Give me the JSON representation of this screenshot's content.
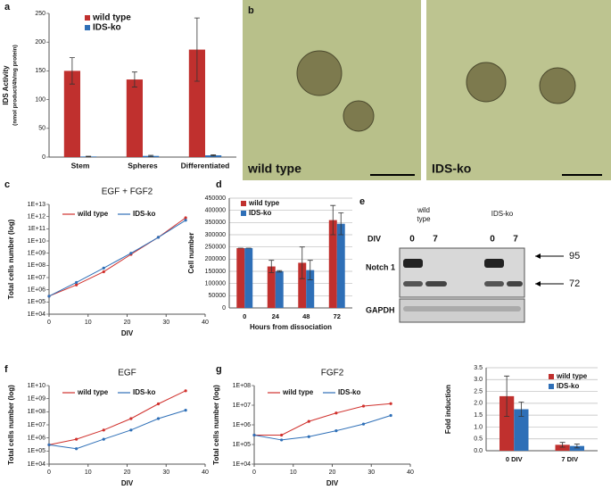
{
  "chart_data": [
    {
      "type": "bar",
      "panel": "a",
      "ylabel": "IDS Activity",
      "ylabel_sub": "(nmol product/4h/mg protein)",
      "categories": [
        "Stem",
        "Spheres",
        "Differentiated"
      ],
      "series": [
        {
          "name": "wild type",
          "color": "#c0302e",
          "values": [
            150,
            135,
            187
          ],
          "errors": [
            23,
            13,
            55
          ]
        },
        {
          "name": "IDS-ko",
          "color": "#2e6fb7",
          "values": [
            1,
            2,
            3
          ],
          "errors": [
            0.5,
            1,
            1
          ]
        }
      ],
      "ylim": [
        0,
        250
      ],
      "yticks": [
        0,
        50,
        100,
        150,
        200,
        250
      ],
      "grid": false,
      "legend": "upper left"
    },
    {
      "type": "line",
      "panel": "c",
      "title": "EGF + FGF2",
      "xlabel": "DIV",
      "ylabel": "Total cells number (log)",
      "log": true,
      "x": [
        0,
        7,
        14,
        21,
        28,
        35
      ],
      "series": [
        {
          "name": "wild type",
          "color": "#d0312d",
          "values": [
            300000,
            2500000,
            30000000,
            800000000,
            20000000000,
            800000000000
          ]
        },
        {
          "name": "IDS-ko",
          "color": "#2e6fb7",
          "values": [
            300000,
            4000000,
            60000000,
            1000000000,
            20000000000,
            500000000000
          ]
        }
      ],
      "xlim": [
        0,
        40
      ],
      "xticks": [
        0,
        10,
        20,
        30,
        40
      ],
      "ylim": [
        10000,
        10000000000000
      ],
      "yticks": [
        {
          "value": 10000,
          "label": "1E+04"
        },
        {
          "value": 100000,
          "label": "1E+05"
        },
        {
          "value": 1000000,
          "label": "1E+06"
        },
        {
          "value": 10000000,
          "label": "1E+07"
        },
        {
          "value": 100000000,
          "label": "1E+08"
        },
        {
          "value": 1000000000,
          "label": "1E+09"
        },
        {
          "value": 10000000000,
          "label": "1E+10"
        },
        {
          "value": 100000000000,
          "label": "1E+11"
        },
        {
          "value": 1000000000000,
          "label": "1E+12"
        },
        {
          "value": 10000000000000,
          "label": "1E+13"
        }
      ],
      "grid": false,
      "legend": "upper left"
    },
    {
      "type": "bar",
      "panel": "d",
      "xlabel": "Hours from dissociation",
      "ylabel": "Cell number",
      "categories": [
        "0",
        "24",
        "48",
        "72"
      ],
      "series": [
        {
          "name": "wild type",
          "color": "#c0302e",
          "values": [
            245000,
            170000,
            185000,
            360000
          ],
          "errors": [
            0,
            25000,
            65000,
            60000
          ]
        },
        {
          "name": "IDS-ko",
          "color": "#2e6fb7",
          "values": [
            245000,
            150000,
            155000,
            345000
          ],
          "errors": [
            0,
            3000,
            40000,
            45000
          ]
        }
      ],
      "ylim": [
        0,
        450000
      ],
      "yticks": [
        0,
        50000,
        100000,
        150000,
        200000,
        250000,
        300000,
        350000,
        400000,
        450000
      ],
      "grid": true,
      "legend": "upper left"
    },
    {
      "type": "line",
      "panel": "f",
      "title": "EGF",
      "xlabel": "DIV",
      "ylabel": "Total cells number (log)",
      "log": true,
      "x": [
        0,
        7,
        14,
        21,
        28,
        35
      ],
      "series": [
        {
          "name": "wild type",
          "color": "#d0312d",
          "values": [
            300000,
            800000,
            4000000,
            30000000,
            400000000,
            4000000000
          ]
        },
        {
          "name": "IDS-ko",
          "color": "#2e6fb7",
          "values": [
            300000,
            150000,
            800000,
            4000000,
            30000000,
            130000000
          ]
        }
      ],
      "xlim": [
        0,
        40
      ],
      "xticks": [
        0,
        10,
        20,
        30,
        40
      ],
      "ylim": [
        10000,
        10000000000
      ],
      "yticks": [
        {
          "value": 10000,
          "label": "1E+04"
        },
        {
          "value": 100000,
          "label": "1E+05"
        },
        {
          "value": 1000000,
          "label": "1E+06"
        },
        {
          "value": 10000000,
          "label": "1E+07"
        },
        {
          "value": 100000000,
          "label": "1E+08"
        },
        {
          "value": 1000000000,
          "label": "1E+09"
        },
        {
          "value": 10000000000,
          "label": "1E+10"
        }
      ],
      "grid": false,
      "legend": "upper left"
    },
    {
      "type": "line",
      "panel": "g",
      "title": "FGF2",
      "xlabel": "DIV",
      "ylabel": "Total cells number (log)",
      "log": true,
      "x": [
        0,
        7,
        14,
        21,
        28,
        35
      ],
      "series": [
        {
          "name": "wild type",
          "color": "#d0312d",
          "values": [
            300000,
            300000,
            1500000,
            4000000,
            9000000,
            12000000
          ]
        },
        {
          "name": "IDS-ko",
          "color": "#2e6fb7",
          "values": [
            300000,
            170000,
            250000,
            500000,
            1100000,
            3000000
          ]
        }
      ],
      "xlim": [
        0,
        40
      ],
      "xticks": [
        0,
        10,
        20,
        30,
        40
      ],
      "ylim": [
        10000,
        100000000
      ],
      "yticks": [
        {
          "value": 10000,
          "label": "1E+04"
        },
        {
          "value": 100000,
          "label": "1E+05"
        },
        {
          "value": 1000000,
          "label": "1E+06"
        },
        {
          "value": 10000000,
          "label": "1E+07"
        },
        {
          "value": 100000000,
          "label": "1E+08"
        }
      ],
      "grid": false,
      "legend": "upper left"
    },
    {
      "type": "bar",
      "ylabel": "Fold induction",
      "categories": [
        "0 DIV",
        "7 DIV"
      ],
      "series": [
        {
          "name": "wild type",
          "color": "#c0302e",
          "values": [
            2.3,
            0.25
          ],
          "errors": [
            0.85,
            0.1
          ]
        },
        {
          "name": "IDS-ko",
          "color": "#2e6fb7",
          "values": [
            1.75,
            0.2
          ],
          "errors": [
            0.3,
            0.08
          ]
        }
      ],
      "ylim": [
        0,
        3.5
      ],
      "yticks": [
        {
          "value": 0,
          "label": "0.0"
        },
        {
          "value": 0.5,
          "label": "0.5"
        },
        {
          "value": 1,
          "label": "1.0"
        },
        {
          "value": 1.5,
          "label": "1.5"
        },
        {
          "value": 2,
          "label": "2.0"
        },
        {
          "value": 2.5,
          "label": "2.5"
        },
        {
          "value": 3,
          "label": "3.0"
        },
        {
          "value": 3.5,
          "label": "3.5"
        }
      ],
      "grid": true,
      "legend": "upper right"
    }
  ],
  "images": {
    "panel": "b",
    "labels": [
      "wild type",
      "IDS-ko"
    ]
  },
  "blot": {
    "panel": "e",
    "groups": [
      "wild",
      "type",
      "IDS-ko"
    ],
    "row_label": "DIV",
    "lanes": [
      "0",
      "7",
      "0",
      "7"
    ],
    "bands": [
      "Notch 1",
      "GAPDH"
    ],
    "markers": [
      "95",
      "72"
    ]
  }
}
